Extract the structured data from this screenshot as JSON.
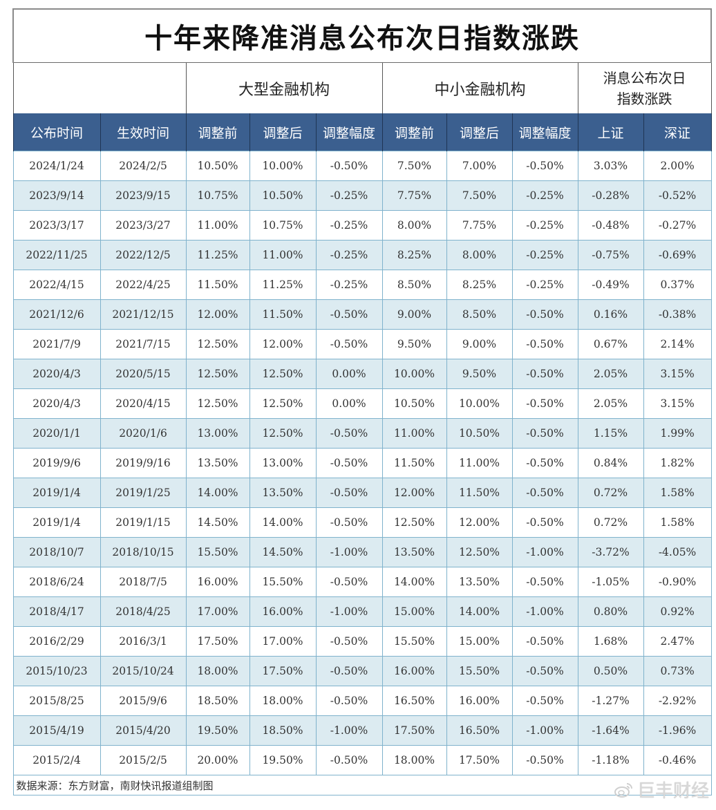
{
  "title": "十年来降准消息公布次日指数涨跌",
  "group_headers": {
    "large": "大型金融机构",
    "small": "中小金融机构",
    "index_line1": "消息公布次日",
    "index_line2": "指数涨跌"
  },
  "columns": [
    "公布时间",
    "生效时间",
    "调整前",
    "调整后",
    "调整幅度",
    "调整前",
    "调整后",
    "调整幅度",
    "上证",
    "深证"
  ],
  "colors": {
    "header_bg": "#3b5f8f",
    "stripe_bg": "#dcebf1",
    "up": "#c0393b",
    "down": "#3aa65a"
  },
  "rows": [
    [
      "2024/1/24",
      "2024/2/5",
      "10.50%",
      "10.00%",
      "-0.50%",
      "7.50%",
      "7.00%",
      "-0.50%",
      "3.03%",
      "2.00%"
    ],
    [
      "2023/9/14",
      "2023/9/15",
      "10.75%",
      "10.50%",
      "-0.25%",
      "7.75%",
      "7.50%",
      "-0.25%",
      "-0.28%",
      "-0.52%"
    ],
    [
      "2023/3/17",
      "2023/3/27",
      "11.00%",
      "10.75%",
      "-0.25%",
      "8.00%",
      "7.75%",
      "-0.25%",
      "-0.48%",
      "-0.27%"
    ],
    [
      "2022/11/25",
      "2022/12/5",
      "11.25%",
      "11.00%",
      "-0.25%",
      "8.25%",
      "8.00%",
      "-0.25%",
      "-0.75%",
      "-0.69%"
    ],
    [
      "2022/4/15",
      "2022/4/25",
      "11.50%",
      "11.25%",
      "-0.25%",
      "8.50%",
      "8.25%",
      "-0.25%",
      "-0.49%",
      "0.37%"
    ],
    [
      "2021/12/6",
      "2021/12/15",
      "12.00%",
      "11.50%",
      "-0.50%",
      "9.00%",
      "8.50%",
      "-0.50%",
      "0.16%",
      "-0.38%"
    ],
    [
      "2021/7/9",
      "2021/7/15",
      "12.50%",
      "12.00%",
      "-0.50%",
      "9.50%",
      "9.00%",
      "-0.50%",
      "0.67%",
      "2.14%"
    ],
    [
      "2020/4/3",
      "2020/5/15",
      "12.50%",
      "12.50%",
      "0.00%",
      "10.00%",
      "9.50%",
      "-0.50%",
      "2.05%",
      "3.15%"
    ],
    [
      "2020/4/3",
      "2020/4/15",
      "12.50%",
      "12.50%",
      "0.00%",
      "10.50%",
      "10.00%",
      "-0.50%",
      "2.05%",
      "3.15%"
    ],
    [
      "2020/1/1",
      "2020/1/6",
      "13.00%",
      "12.50%",
      "-0.50%",
      "11.00%",
      "10.50%",
      "-0.50%",
      "1.15%",
      "1.99%"
    ],
    [
      "2019/9/6",
      "2019/9/16",
      "13.50%",
      "13.00%",
      "-0.50%",
      "11.50%",
      "11.00%",
      "-0.50%",
      "0.84%",
      "1.82%"
    ],
    [
      "2019/1/4",
      "2019/1/25",
      "14.00%",
      "13.50%",
      "-0.50%",
      "12.00%",
      "11.50%",
      "-0.50%",
      "0.72%",
      "1.58%"
    ],
    [
      "2019/1/4",
      "2019/1/15",
      "14.50%",
      "14.00%",
      "-0.50%",
      "12.50%",
      "12.00%",
      "-0.50%",
      "0.72%",
      "1.58%"
    ],
    [
      "2018/10/7",
      "2018/10/15",
      "15.50%",
      "14.50%",
      "-1.00%",
      "13.50%",
      "12.50%",
      "-1.00%",
      "-3.72%",
      "-4.05%"
    ],
    [
      "2018/6/24",
      "2018/7/5",
      "16.00%",
      "15.50%",
      "-0.50%",
      "14.00%",
      "13.50%",
      "-0.50%",
      "-1.05%",
      "-0.90%"
    ],
    [
      "2018/4/17",
      "2018/4/25",
      "17.00%",
      "16.00%",
      "-1.00%",
      "15.00%",
      "14.00%",
      "-1.00%",
      "0.80%",
      "0.92%"
    ],
    [
      "2016/2/29",
      "2016/3/1",
      "17.50%",
      "17.00%",
      "-0.50%",
      "15.50%",
      "15.00%",
      "-0.50%",
      "1.68%",
      "2.47%"
    ],
    [
      "2015/10/23",
      "2015/10/24",
      "18.00%",
      "17.50%",
      "-0.50%",
      "16.00%",
      "15.50%",
      "-0.50%",
      "0.50%",
      "0.73%"
    ],
    [
      "2015/8/25",
      "2015/9/6",
      "18.50%",
      "18.00%",
      "-0.50%",
      "16.50%",
      "16.00%",
      "-0.50%",
      "-1.27%",
      "-2.92%"
    ],
    [
      "2015/4/19",
      "2015/4/20",
      "19.50%",
      "18.50%",
      "-1.00%",
      "17.50%",
      "16.50%",
      "-1.00%",
      "-1.64%",
      "-1.96%"
    ],
    [
      "2015/2/4",
      "2015/2/5",
      "20.00%",
      "19.50%",
      "-0.50%",
      "18.00%",
      "17.50%",
      "-0.50%",
      "-1.18%",
      "-0.46%"
    ]
  ],
  "footer": "数据来源：东方财富，南财快讯报道组制图",
  "watermark": {
    "icon": "weibo-icon",
    "text": "巨丰财经"
  }
}
